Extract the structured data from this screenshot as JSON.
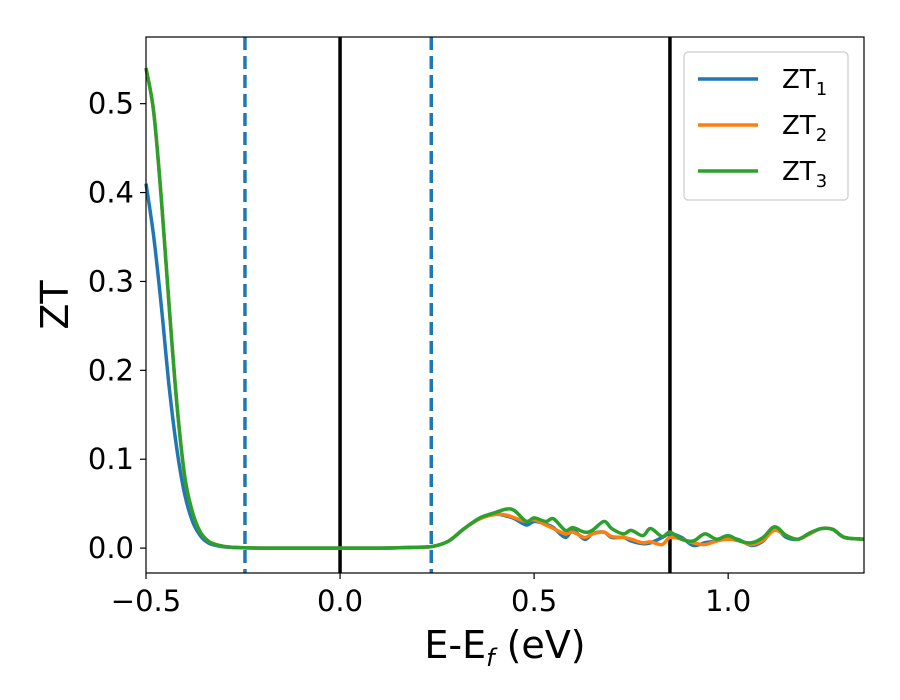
{
  "chart_data": {
    "type": "line",
    "xlabel": {
      "main": "E-E",
      "sub": "f",
      "suffix": " (eV)"
    },
    "ylabel": "ZT",
    "xlim": [
      -0.5,
      1.35
    ],
    "ylim": [
      -0.028,
      0.575
    ],
    "xticks": [
      {
        "value": -0.5,
        "label": "−0.5"
      },
      {
        "value": 0.0,
        "label": "0.0"
      },
      {
        "value": 0.5,
        "label": "0.5"
      },
      {
        "value": 1.0,
        "label": "1.0"
      }
    ],
    "yticks": [
      {
        "value": 0.0,
        "label": "0.0"
      },
      {
        "value": 0.1,
        "label": "0.1"
      },
      {
        "value": 0.2,
        "label": "0.2"
      },
      {
        "value": 0.3,
        "label": "0.3"
      },
      {
        "value": 0.4,
        "label": "0.4"
      },
      {
        "value": 0.5,
        "label": "0.5"
      }
    ],
    "grid": false,
    "legend_position": "top-right",
    "vertical_lines": [
      {
        "x": -0.245,
        "style": "dashed",
        "color": "#1f77b4"
      },
      {
        "x": 0.235,
        "style": "dashed",
        "color": "#1f77b4"
      },
      {
        "x": 0.0,
        "style": "solid",
        "color": "#000000"
      },
      {
        "x": 0.85,
        "style": "solid",
        "color": "#000000"
      }
    ],
    "series": [
      {
        "name": "ZT",
        "name_sub": "1",
        "color": "#1f77b4",
        "x": [
          -0.5,
          -0.48,
          -0.46,
          -0.44,
          -0.42,
          -0.4,
          -0.38,
          -0.36,
          -0.34,
          -0.32,
          -0.3,
          -0.28,
          -0.26,
          -0.24,
          -0.2,
          -0.1,
          0.0,
          0.1,
          0.2,
          0.24,
          0.28,
          0.32,
          0.36,
          0.4,
          0.43,
          0.45,
          0.48,
          0.5,
          0.53,
          0.55,
          0.58,
          0.6,
          0.63,
          0.65,
          0.68,
          0.7,
          0.73,
          0.75,
          0.78,
          0.8,
          0.83,
          0.85,
          0.88,
          0.91,
          0.94,
          0.97,
          1.0,
          1.03,
          1.06,
          1.09,
          1.12,
          1.15,
          1.18,
          1.21,
          1.24,
          1.27,
          1.3,
          1.35
        ],
        "y": [
          0.41,
          0.35,
          0.27,
          0.18,
          0.11,
          0.06,
          0.03,
          0.014,
          0.006,
          0.003,
          0.0015,
          0.001,
          0.0005,
          0.0003,
          0.0,
          0.0,
          0.0,
          0.0,
          0.001,
          0.002,
          0.008,
          0.022,
          0.033,
          0.038,
          0.036,
          0.033,
          0.026,
          0.03,
          0.027,
          0.023,
          0.012,
          0.02,
          0.01,
          0.016,
          0.018,
          0.012,
          0.012,
          0.008,
          0.005,
          0.006,
          0.012,
          0.016,
          0.012,
          0.003,
          0.006,
          0.008,
          0.012,
          0.009,
          0.003,
          0.008,
          0.022,
          0.012,
          0.01,
          0.016,
          0.022,
          0.021,
          0.012,
          0.01
        ]
      },
      {
        "name": "ZT",
        "name_sub": "2",
        "color": "#ff7f0e",
        "x": [
          -0.5,
          -0.48,
          -0.46,
          -0.44,
          -0.42,
          -0.4,
          -0.38,
          -0.36,
          -0.34,
          -0.32,
          -0.3,
          -0.28,
          -0.26,
          -0.24,
          -0.2,
          -0.1,
          0.0,
          0.1,
          0.2,
          0.24,
          0.28,
          0.32,
          0.36,
          0.4,
          0.43,
          0.45,
          0.48,
          0.5,
          0.53,
          0.55,
          0.58,
          0.6,
          0.63,
          0.65,
          0.68,
          0.7,
          0.73,
          0.75,
          0.78,
          0.8,
          0.83,
          0.85,
          0.88,
          0.91,
          0.94,
          0.97,
          1.0,
          1.03,
          1.06,
          1.09,
          1.12,
          1.15,
          1.18,
          1.21,
          1.24,
          1.27,
          1.3,
          1.35
        ],
        "y": [
          0.54,
          0.49,
          0.39,
          0.27,
          0.16,
          0.08,
          0.04,
          0.018,
          0.008,
          0.004,
          0.002,
          0.001,
          0.0006,
          0.0003,
          0.0,
          0.0,
          0.0,
          0.0,
          0.001,
          0.002,
          0.008,
          0.022,
          0.033,
          0.038,
          0.037,
          0.034,
          0.03,
          0.032,
          0.026,
          0.022,
          0.016,
          0.018,
          0.012,
          0.016,
          0.018,
          0.013,
          0.012,
          0.01,
          0.006,
          0.007,
          0.004,
          0.012,
          0.01,
          0.006,
          0.004,
          0.008,
          0.01,
          0.008,
          0.004,
          0.009,
          0.02,
          0.014,
          0.01,
          0.016,
          0.022,
          0.021,
          0.012,
          0.01
        ]
      },
      {
        "name": "ZT",
        "name_sub": "3",
        "color": "#2ca02c",
        "x": [
          -0.5,
          -0.48,
          -0.46,
          -0.44,
          -0.42,
          -0.4,
          -0.38,
          -0.36,
          -0.34,
          -0.32,
          -0.3,
          -0.28,
          -0.26,
          -0.24,
          -0.2,
          -0.1,
          0.0,
          0.1,
          0.2,
          0.24,
          0.28,
          0.32,
          0.36,
          0.4,
          0.43,
          0.45,
          0.48,
          0.5,
          0.53,
          0.55,
          0.58,
          0.6,
          0.63,
          0.65,
          0.68,
          0.7,
          0.73,
          0.75,
          0.78,
          0.8,
          0.83,
          0.85,
          0.88,
          0.91,
          0.94,
          0.97,
          1.0,
          1.03,
          1.06,
          1.09,
          1.12,
          1.15,
          1.18,
          1.21,
          1.24,
          1.27,
          1.3,
          1.35
        ],
        "y": [
          0.54,
          0.49,
          0.39,
          0.27,
          0.16,
          0.08,
          0.04,
          0.018,
          0.008,
          0.004,
          0.002,
          0.001,
          0.0006,
          0.0003,
          0.0,
          0.0,
          0.0,
          0.0,
          0.001,
          0.002,
          0.008,
          0.022,
          0.034,
          0.04,
          0.044,
          0.042,
          0.03,
          0.034,
          0.03,
          0.033,
          0.02,
          0.023,
          0.018,
          0.02,
          0.03,
          0.022,
          0.016,
          0.02,
          0.014,
          0.022,
          0.013,
          0.018,
          0.01,
          0.008,
          0.016,
          0.01,
          0.014,
          0.008,
          0.006,
          0.012,
          0.024,
          0.014,
          0.01,
          0.017,
          0.022,
          0.021,
          0.012,
          0.01
        ]
      }
    ]
  }
}
